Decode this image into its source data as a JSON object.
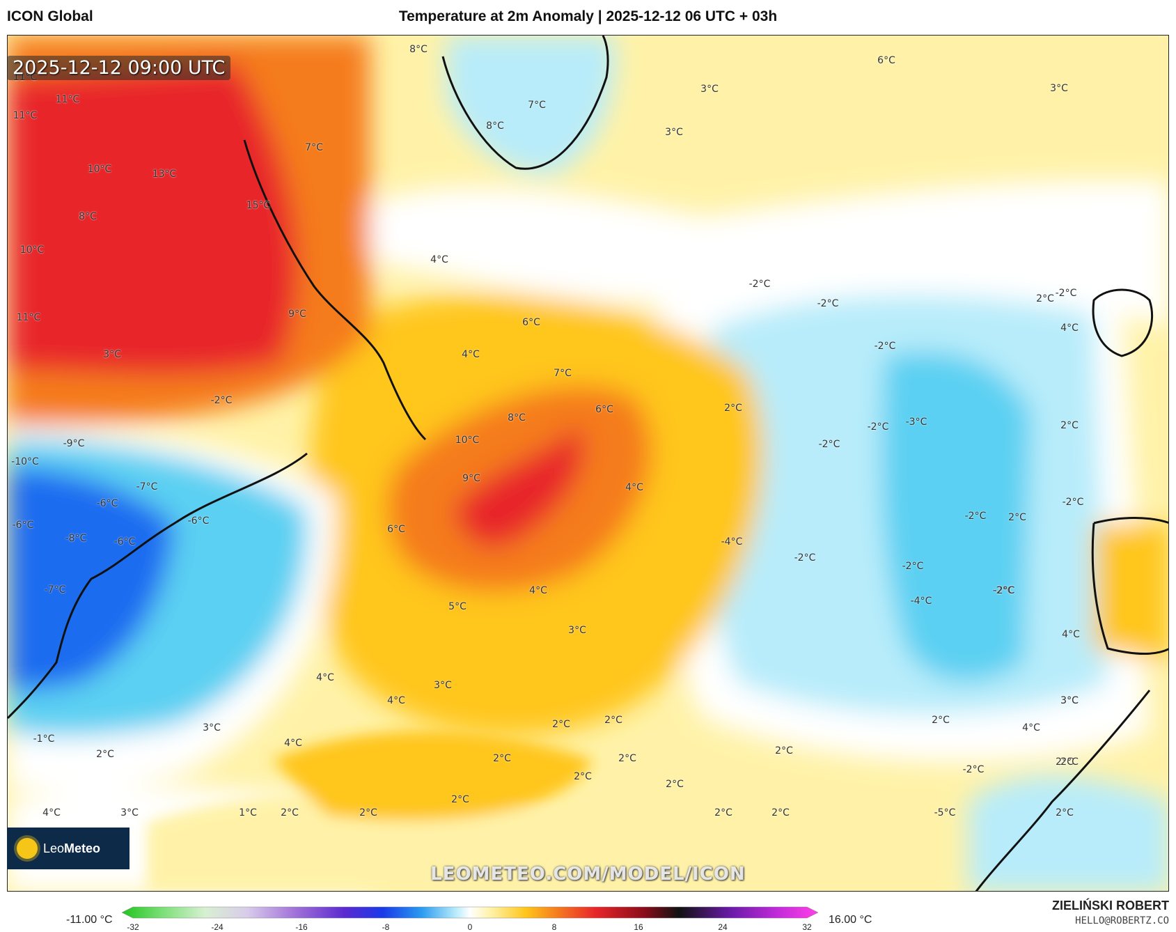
{
  "header": {
    "model": "ICON Global",
    "title": "Temperature at 2m Anomaly | 2025-12-12 06 UTC + 03h"
  },
  "map": {
    "valid_time": "2025-12-12 09:00 UTC",
    "watermark_url": "LEOMETEO.COM/MODEL/ICON",
    "brand_name": "Leo",
    "brand_name_bold": "Meteo",
    "labels": [
      {
        "text": "11°C"
      },
      {
        "text": "11°C"
      },
      {
        "text": "11°C"
      },
      {
        "text": "10°C"
      },
      {
        "text": "13°C"
      },
      {
        "text": "8°C"
      },
      {
        "text": "15°C"
      },
      {
        "text": "10°C"
      },
      {
        "text": "7°C"
      },
      {
        "text": "11°C"
      },
      {
        "text": "9°C"
      },
      {
        "text": "3°C"
      },
      {
        "text": "8°C"
      },
      {
        "text": "7°C"
      },
      {
        "text": "8°C"
      },
      {
        "text": "3°C"
      },
      {
        "text": "3°C"
      },
      {
        "text": "6°C"
      },
      {
        "text": "3°C"
      },
      {
        "text": "4°C"
      },
      {
        "text": "6°C"
      },
      {
        "text": "4°C"
      },
      {
        "text": "7°C"
      },
      {
        "text": "6°C"
      },
      {
        "text": "8°C"
      },
      {
        "text": "10°C"
      },
      {
        "text": "9°C"
      },
      {
        "text": "6°C"
      },
      {
        "text": "4°C"
      },
      {
        "text": "4°C"
      },
      {
        "text": "5°C"
      },
      {
        "text": "3°C"
      },
      {
        "text": "2°C"
      },
      {
        "text": "-2°C"
      },
      {
        "text": "-2°C"
      },
      {
        "text": "-2°C"
      },
      {
        "text": "-2°C"
      },
      {
        "text": "-3°C"
      },
      {
        "text": "-2°C"
      },
      {
        "text": "-2°C"
      },
      {
        "text": "-2°C"
      },
      {
        "text": "-4°C"
      },
      {
        "text": "-2°C"
      },
      {
        "text": "-4°C"
      },
      {
        "text": "-9°C"
      },
      {
        "text": "-10°C"
      },
      {
        "text": "-7°C"
      },
      {
        "text": "-6°C"
      },
      {
        "text": "-6°C"
      },
      {
        "text": "-8°C"
      },
      {
        "text": "-6°C"
      },
      {
        "text": "-6°C"
      },
      {
        "text": "-7°C"
      },
      {
        "text": "-2°C"
      },
      {
        "text": "4°C"
      },
      {
        "text": "3°C"
      },
      {
        "text": "4°C"
      },
      {
        "text": "3°C"
      },
      {
        "text": "4°C"
      },
      {
        "text": "2°C"
      },
      {
        "text": "2°C"
      },
      {
        "text": "2°C"
      },
      {
        "text": "2°C"
      },
      {
        "text": "2°C"
      },
      {
        "text": "2°C"
      },
      {
        "text": "2°C"
      },
      {
        "text": "2°C"
      },
      {
        "text": "2°C"
      },
      {
        "text": "2°C"
      },
      {
        "text": "2°C"
      },
      {
        "text": "1°C"
      },
      {
        "text": "3°C"
      },
      {
        "text": "4°C"
      },
      {
        "text": "-1°C"
      },
      {
        "text": "2°C"
      },
      {
        "text": "4°C"
      },
      {
        "text": "3°C"
      },
      {
        "text": "2°C"
      },
      {
        "text": "-2°C"
      },
      {
        "text": "-5°C"
      },
      {
        "text": "2°C"
      },
      {
        "text": "4°C"
      },
      {
        "text": "-2°C"
      },
      {
        "text": "2°C"
      },
      {
        "text": "2°C"
      },
      {
        "text": "2°C"
      },
      {
        "text": "2°C"
      },
      {
        "text": "2°C"
      },
      {
        "text": "-2°C"
      },
      {
        "text": "-2°C"
      },
      {
        "text": "4°C"
      },
      {
        "text": "-2°C"
      },
      {
        "text": "2°C"
      },
      {
        "text": "3°C"
      }
    ]
  },
  "colorbar": {
    "min_label": "-11.00 °C",
    "max_label": "16.00 °C",
    "ticks": [
      "-32",
      "-24",
      "-16",
      "-8",
      "0",
      "8",
      "16",
      "24",
      "32"
    ]
  },
  "footer": {
    "author": "ZIELIŃSKI ROBERT",
    "email": "HELLO@ROBERTZ.CO"
  },
  "colors": {
    "strong_warm": "#e8262a",
    "warm": "#f57c1f",
    "mild_warm": "#ffc61a",
    "slight_warm": "#fff2a8",
    "neutral": "#ffffff",
    "slight_cold": "#b8ecfa",
    "cold": "#5cd0f2",
    "strong_cold": "#1a6cf0"
  }
}
